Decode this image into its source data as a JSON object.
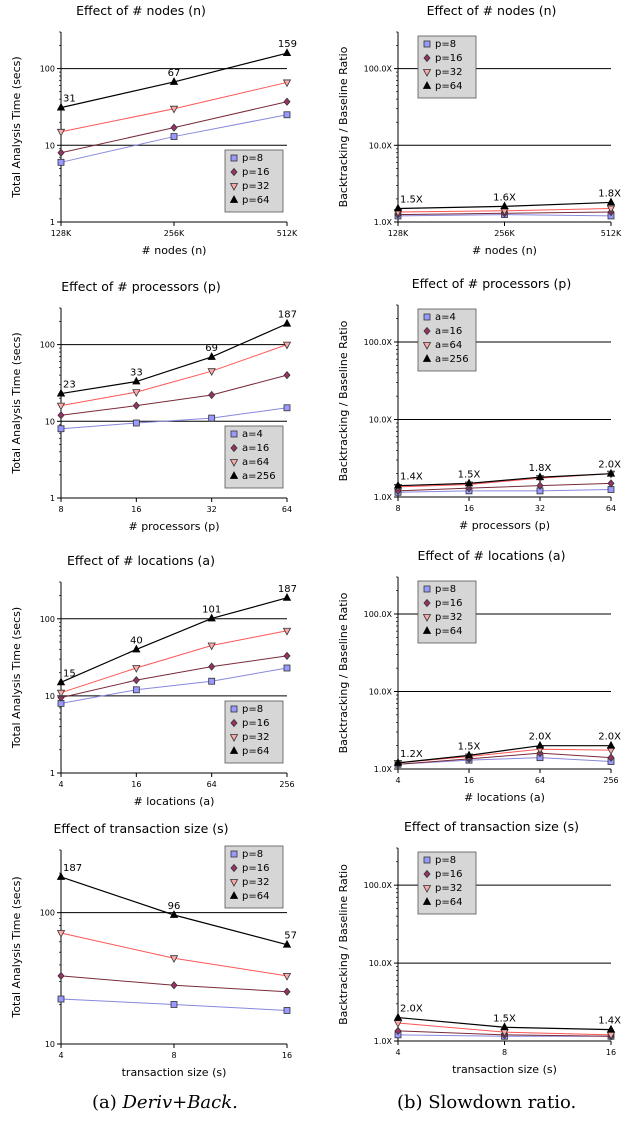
{
  "captions": {
    "left_prefix": "(a) ",
    "left_text": "Deriv+Back.",
    "right_text": "(b) Slowdown ratio."
  },
  "series_styles": [
    {
      "color": "#8888dd",
      "fill": "#9999ff",
      "marker": "square"
    },
    {
      "color": "#7a2a3a",
      "fill": "#993366",
      "marker": "diamond"
    },
    {
      "color": "#ff5555",
      "fill": "#ffaaaa",
      "marker": "triangle-down"
    },
    {
      "color": "#000000",
      "fill": "#000000",
      "marker": "triangle-up"
    }
  ],
  "chart_data": [
    {
      "type": "line",
      "title": "Effect of # nodes (n)",
      "xlabel": "# nodes (n)",
      "ylabel": "Total Analysis Time (secs)",
      "yscale": "log",
      "ylim": [
        1,
        300
      ],
      "yticks": [
        "1",
        "10",
        "100"
      ],
      "categories": [
        "128K",
        "256K",
        "512K"
      ],
      "legend_position": "lower-right",
      "series": [
        {
          "name": "p=8",
          "values": [
            6,
            13,
            25
          ]
        },
        {
          "name": "p=16",
          "values": [
            8,
            17,
            37
          ]
        },
        {
          "name": "p=32",
          "values": [
            15,
            30,
            66
          ]
        },
        {
          "name": "p=64",
          "values": [
            31,
            67,
            159
          ]
        }
      ],
      "point_labels": [
        "31",
        "67",
        "159"
      ]
    },
    {
      "type": "line",
      "title": "Effect of # nodes (n)",
      "xlabel": "# nodes (n)",
      "ylabel": "Backtracking / Baseline Ratio",
      "yscale": "log",
      "ylim": [
        1,
        300
      ],
      "yticks": [
        "1.0X",
        "10.0X",
        "100.0X"
      ],
      "categories": [
        "128K",
        "256K",
        "512K"
      ],
      "legend_position": "top-left",
      "series": [
        {
          "name": "p=8",
          "values": [
            1.2,
            1.25,
            1.2
          ]
        },
        {
          "name": "p=16",
          "values": [
            1.25,
            1.3,
            1.35
          ]
        },
        {
          "name": "p=32",
          "values": [
            1.35,
            1.4,
            1.5
          ]
        },
        {
          "name": "p=64",
          "values": [
            1.5,
            1.6,
            1.8
          ]
        }
      ],
      "point_labels": [
        "1.5X",
        "1.6X",
        "1.8X"
      ]
    },
    {
      "type": "line",
      "title": "Effect of # processors (p)",
      "xlabel": "# processors (p)",
      "ylabel": "Total Analysis Time (secs)",
      "yscale": "log",
      "ylim": [
        1,
        300
      ],
      "yticks": [
        "1",
        "10",
        "100"
      ],
      "categories": [
        "8",
        "16",
        "32",
        "64"
      ],
      "legend_position": "lower-right",
      "series": [
        {
          "name": "a=4",
          "values": [
            8,
            9.5,
            11,
            15
          ]
        },
        {
          "name": "a=16",
          "values": [
            12,
            16,
            22,
            40
          ]
        },
        {
          "name": "a=64",
          "values": [
            16,
            24,
            45,
            100
          ]
        },
        {
          "name": "a=256",
          "values": [
            23,
            33,
            69,
            187
          ]
        }
      ],
      "point_labels": [
        "23",
        "33",
        "69",
        "187"
      ]
    },
    {
      "type": "line",
      "title": "Effect of # processors (p)",
      "xlabel": "# processors (p)",
      "ylabel": "Backtracking / Baseline Ratio",
      "yscale": "log",
      "ylim": [
        1,
        300
      ],
      "yticks": [
        "1.0X",
        "10.0X",
        "100.0X"
      ],
      "categories": [
        "8",
        "16",
        "32",
        "64"
      ],
      "legend_position": "top-left",
      "series": [
        {
          "name": "a=4",
          "values": [
            1.15,
            1.2,
            1.2,
            1.25
          ]
        },
        {
          "name": "a=16",
          "values": [
            1.2,
            1.3,
            1.4,
            1.5
          ]
        },
        {
          "name": "a=64",
          "values": [
            1.35,
            1.45,
            1.75,
            2.0
          ]
        },
        {
          "name": "a=256",
          "values": [
            1.4,
            1.5,
            1.8,
            2.0
          ]
        }
      ],
      "point_labels": [
        "1.4X",
        "1.5X",
        "1.8X",
        "2.0X"
      ]
    },
    {
      "type": "line",
      "title": "Effect of # locations (a)",
      "xlabel": "# locations (a)",
      "ylabel": "Total Analysis Time (secs)",
      "yscale": "log",
      "ylim": [
        1,
        300
      ],
      "yticks": [
        "1",
        "10",
        "100"
      ],
      "categories": [
        "4",
        "16",
        "64",
        "256"
      ],
      "legend_position": "lower-right",
      "series": [
        {
          "name": "p=8",
          "values": [
            8,
            12,
            15.5,
            23
          ]
        },
        {
          "name": "p=16",
          "values": [
            9.5,
            16,
            24,
            33
          ]
        },
        {
          "name": "p=32",
          "values": [
            11,
            23,
            45,
            70
          ]
        },
        {
          "name": "p=64",
          "values": [
            15,
            40,
            101,
            187
          ]
        }
      ],
      "point_labels": [
        "15",
        "40",
        "101",
        "187"
      ]
    },
    {
      "type": "line",
      "title": "Effect of # locations (a)",
      "xlabel": "# locations (a)",
      "ylabel": "Backtracking / Baseline Ratio",
      "yscale": "log",
      "ylim": [
        1,
        300
      ],
      "yticks": [
        "1.0X",
        "10.0X",
        "100.0X"
      ],
      "categories": [
        "4",
        "16",
        "64",
        "256"
      ],
      "legend_position": "top-left",
      "series": [
        {
          "name": "p=8",
          "values": [
            1.15,
            1.3,
            1.4,
            1.25
          ]
        },
        {
          "name": "p=16",
          "values": [
            1.15,
            1.35,
            1.6,
            1.4
          ]
        },
        {
          "name": "p=32",
          "values": [
            1.2,
            1.45,
            1.8,
            1.75
          ]
        },
        {
          "name": "p=64",
          "values": [
            1.2,
            1.5,
            2.0,
            2.0
          ]
        }
      ],
      "point_labels": [
        "1.2X",
        "1.5X",
        "2.0X",
        "2.0X"
      ]
    },
    {
      "type": "line",
      "title": "Effect of transaction size (s)",
      "xlabel": "transaction size (s)",
      "ylabel": "Total Analysis Time (secs)",
      "yscale": "log",
      "ylim": [
        10,
        300
      ],
      "yticks": [
        "10",
        "100"
      ],
      "categories": [
        "4",
        "8",
        "16"
      ],
      "legend_position": "top-right",
      "series": [
        {
          "name": "p=8",
          "values": [
            22,
            20,
            18
          ]
        },
        {
          "name": "p=16",
          "values": [
            33,
            28,
            25
          ]
        },
        {
          "name": "p=32",
          "values": [
            70,
            45,
            33
          ]
        },
        {
          "name": "p=64",
          "values": [
            187,
            96,
            57
          ]
        }
      ],
      "point_labels": [
        "187",
        "96",
        "57"
      ]
    },
    {
      "type": "line",
      "title": "Effect of transaction size (s)",
      "xlabel": "transaction size (s)",
      "ylabel": "Backtracking / Baseline Ratio",
      "yscale": "log",
      "ylim": [
        1,
        300
      ],
      "yticks": [
        "1.0X",
        "10.0X",
        "100.0X"
      ],
      "categories": [
        "4",
        "8",
        "16"
      ],
      "legend_position": "top-left",
      "series": [
        {
          "name": "p=8",
          "values": [
            1.2,
            1.15,
            1.15
          ]
        },
        {
          "name": "p=16",
          "values": [
            1.35,
            1.2,
            1.15
          ]
        },
        {
          "name": "p=32",
          "values": [
            1.7,
            1.3,
            1.2
          ]
        },
        {
          "name": "p=64",
          "values": [
            2.0,
            1.5,
            1.4
          ]
        }
      ],
      "point_labels": [
        "2.0X",
        "1.5X",
        "1.4X"
      ]
    }
  ]
}
